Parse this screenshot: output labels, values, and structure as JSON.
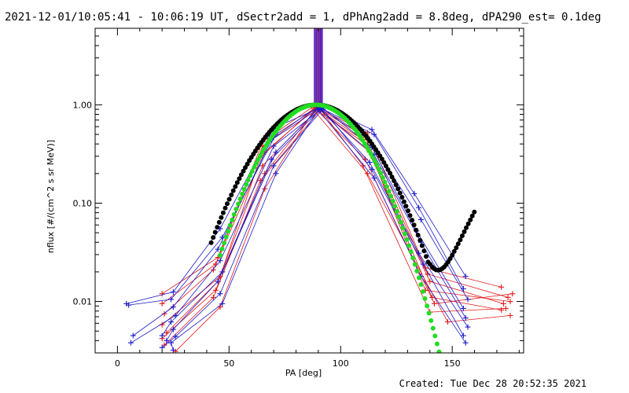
{
  "header": {
    "title": "2021-12-01/10:05:41 - 10:06:19 UT, dSectr2add = 1, dPhAng2add = 8.8deg, dPA290_est=  0.1deg"
  },
  "footer": {
    "created": "Created: Tue Dec 28 20:52:35 2021"
  },
  "chart_data": {
    "type": "scatter",
    "xlabel": "PA [deg]",
    "ylabel": "nflux [#/(cm^2 s sr MeV)]",
    "xlim": [
      -10,
      182
    ],
    "ylim": [
      0.003,
      6
    ],
    "yscale": "log",
    "x_ticks": [
      0,
      50,
      100,
      150
    ],
    "x_tick_labels": [
      "0",
      "50",
      "100",
      "150"
    ],
    "y_ticks": [
      0.01,
      0.1,
      1.0
    ],
    "y_tick_labels": [
      "0.01",
      "0.10",
      "1.00"
    ],
    "grid": false,
    "colors": {
      "red_series": "#e41a1a",
      "blue_series": "#1a1acc",
      "fit_black": "#000000",
      "fit_green": "#22dd22",
      "bar_colors": [
        "#6633cc",
        "#3344dd",
        "#cc2277",
        "#4422bb",
        "#2233ee",
        "#bb3366",
        "#5522cc",
        "#3322aa",
        "#dd2255",
        "#4433cc",
        "#2222bb",
        "#aa2288",
        "#3311dd",
        "#5533bb"
      ]
    },
    "vertical_band": {
      "x": [
        88,
        92
      ],
      "y_from": 1.0,
      "y_to": 6
    },
    "series": [
      {
        "color": "red",
        "marker": "+",
        "x": [
          20,
          45,
          65,
          88,
          112,
          138,
          172
        ],
        "y": [
          0.012,
          0.028,
          0.42,
          0.97,
          0.52,
          0.022,
          0.014
        ]
      },
      {
        "color": "red",
        "marker": "+",
        "x": [
          20,
          44,
          65,
          89,
          111,
          139,
          175
        ],
        "y": [
          0.0095,
          0.024,
          0.38,
          0.95,
          0.47,
          0.019,
          0.011
        ]
      },
      {
        "color": "red",
        "marker": "+",
        "x": [
          21,
          43,
          66,
          89,
          110,
          140,
          173
        ],
        "y": [
          0.0075,
          0.021,
          0.33,
          0.93,
          0.44,
          0.016,
          0.0095
        ]
      },
      {
        "color": "red",
        "marker": "+",
        "x": [
          20,
          46,
          64,
          88,
          112,
          138,
          176
        ],
        "y": [
          0.0058,
          0.018,
          0.29,
          0.92,
          0.39,
          0.013,
          0.01
        ]
      },
      {
        "color": "red",
        "marker": "+",
        "x": [
          22,
          45,
          65,
          90,
          113,
          141,
          172
        ],
        "y": [
          0.0048,
          0.016,
          0.24,
          0.91,
          0.33,
          0.011,
          0.0082
        ]
      },
      {
        "color": "red",
        "marker": "+",
        "x": [
          20,
          44,
          66,
          89,
          111,
          142,
          177
        ],
        "y": [
          0.0042,
          0.013,
          0.2,
          0.9,
          0.28,
          0.0095,
          0.012
        ]
      },
      {
        "color": "red",
        "marker": "+",
        "x": [
          21,
          43,
          64,
          91,
          110,
          140,
          174
        ],
        "y": [
          0.0036,
          0.011,
          0.17,
          0.89,
          0.24,
          0.0078,
          0.0085
        ]
      },
      {
        "color": "red",
        "marker": "+",
        "x": [
          26,
          46,
          66,
          88,
          112,
          148,
          176
        ],
        "y": [
          0.0031,
          0.0088,
          0.14,
          0.88,
          0.2,
          0.0062,
          0.0072
        ]
      },
      {
        "color": "blue",
        "marker": "+",
        "x": [
          4,
          25,
          46,
          70,
          92,
          114,
          133,
          156
        ],
        "y": [
          0.0095,
          0.0125,
          0.055,
          0.58,
          0.96,
          0.56,
          0.125,
          0.018
        ]
      },
      {
        "color": "blue",
        "marker": "+",
        "x": [
          5,
          24,
          47,
          71,
          90,
          115,
          135,
          155
        ],
        "y": [
          0.0092,
          0.0105,
          0.045,
          0.5,
          0.95,
          0.5,
          0.09,
          0.0135
        ]
      },
      {
        "color": "blue",
        "marker": "+",
        "x": [
          7,
          25,
          45,
          69,
          91,
          113,
          136,
          157
        ],
        "y": [
          0.0045,
          0.0088,
          0.034,
          0.44,
          0.94,
          0.44,
          0.068,
          0.0105
        ]
      },
      {
        "color": "blue",
        "marker": "+",
        "x": [
          6,
          26,
          46,
          70,
          92,
          114,
          134,
          155
        ],
        "y": [
          0.0038,
          0.0072,
          0.026,
          0.38,
          0.93,
          0.37,
          0.052,
          0.0085
        ]
      },
      {
        "color": "blue",
        "marker": "+",
        "x": [
          20,
          24,
          47,
          71,
          90,
          115,
          136,
          156
        ],
        "y": [
          0.0045,
          0.0062,
          0.02,
          0.33,
          0.92,
          0.31,
          0.04,
          0.0068
        ]
      },
      {
        "color": "blue",
        "marker": "+",
        "x": [
          22,
          25,
          45,
          69,
          91,
          113,
          135,
          157
        ],
        "y": [
          0.004,
          0.0052,
          0.016,
          0.28,
          0.91,
          0.26,
          0.031,
          0.0055
        ]
      },
      {
        "color": "blue",
        "marker": "+",
        "x": [
          20,
          26,
          46,
          70,
          92,
          114,
          137,
          155
        ],
        "y": [
          0.0034,
          0.0044,
          0.012,
          0.24,
          0.9,
          0.22,
          0.024,
          0.0045
        ]
      },
      {
        "color": "blue",
        "marker": "+",
        "x": [
          25,
          24,
          47,
          71,
          90,
          115,
          136,
          156
        ],
        "y": [
          0.0032,
          0.0038,
          0.0095,
          0.2,
          0.89,
          0.18,
          0.018,
          0.0038
        ]
      }
    ],
    "fits": [
      {
        "name": "",
        "color": "black",
        "x_range": [
          42,
          160
        ],
        "sigma": 18.5,
        "peak_x": 89,
        "peak_y": 1.0,
        "tail": {
          "start": 140,
          "base": 0.017,
          "scale": 11.5
        }
      },
      {
        "name": "",
        "color": "green",
        "x_range": [
          46,
          148
        ],
        "sigma": 16.2,
        "peak_x": 89,
        "peak_y": 1.0
      }
    ]
  }
}
